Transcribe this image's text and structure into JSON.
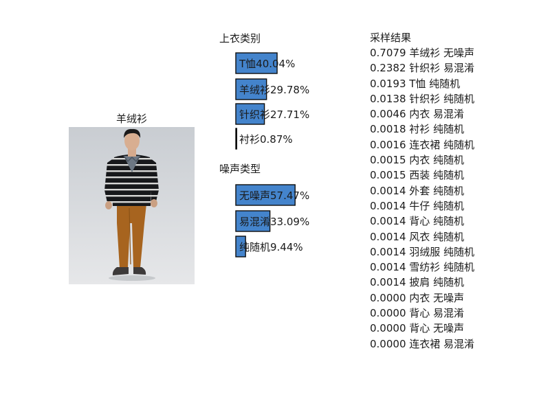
{
  "image_title": "羊绒衫",
  "photo_icon": "man-in-striped-sweater-photo",
  "chart_data": [
    {
      "type": "bar",
      "orientation": "horizontal",
      "title": "上衣类别",
      "categories": [
        "T恤",
        "羊绒衫",
        "针织衫",
        "衬衫"
      ],
      "values": [
        40.04,
        29.78,
        27.71,
        0.87
      ],
      "value_labels": [
        "T恤40.04%",
        "羊绒衫29.78%",
        "针织衫27.71%",
        "衬衫0.87%"
      ],
      "unit": "%",
      "color": "#4484cc",
      "xlim": [
        0,
        100
      ]
    },
    {
      "type": "bar",
      "orientation": "horizontal",
      "title": "噪声类型",
      "categories": [
        "无噪声",
        "易混淆",
        "纯随机"
      ],
      "values": [
        57.47,
        33.09,
        9.44
      ],
      "value_labels": [
        "无噪声57.47%",
        "易混淆33.09%",
        "纯随机9.44%"
      ],
      "unit": "%",
      "color": "#4484cc",
      "xlim": [
        0,
        100
      ]
    }
  ],
  "samples": {
    "title": "采样结果",
    "rows": [
      "0.7079 羊绒衫 无噪声",
      "0.2382 针织衫 易混淆",
      "0.0193 T恤 纯随机",
      "0.0138 针织衫 纯随机",
      "0.0046 内衣 易混淆",
      "0.0018 衬衫 纯随机",
      "0.0016 连衣裙 纯随机",
      "0.0015 内衣 纯随机",
      "0.0015 西装 纯随机",
      "0.0014 外套 纯随机",
      "0.0014 牛仔 纯随机",
      "0.0014 背心 纯随机",
      "0.0014 风衣 纯随机",
      "0.0014 羽绒服 纯随机",
      "0.0014 雪纺衫 纯随机",
      "0.0014 披肩 纯随机",
      "0.0000 内衣 无噪声",
      "0.0000 背心 易混淆",
      "0.0000 背心 无噪声",
      "0.0000 连衣裙 易混淆"
    ]
  }
}
